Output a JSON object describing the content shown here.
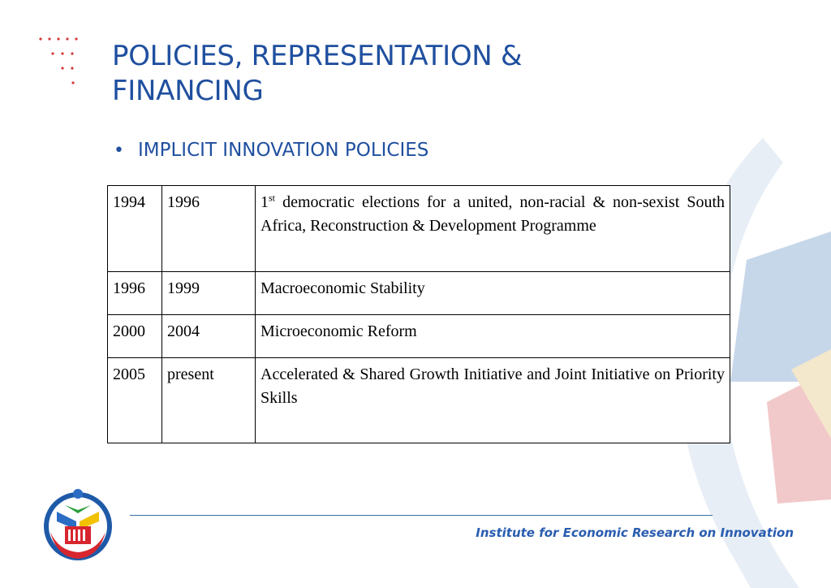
{
  "slide": {
    "title": "POLICIES, REPRESENTATION & FINANCING",
    "bullet": "IMPLICIT INNOVATION POLICIES"
  },
  "table": {
    "rows": [
      {
        "from": "1994",
        "to": "1996",
        "ord_num": "1",
        "ord_suffix": "st",
        "description": "democratic elections for a united, non-racial & non-sexist South Africa, Reconstruction & Development Programme"
      },
      {
        "from": "1996",
        "to": "1999",
        "description": "Macroeconomic Stability"
      },
      {
        "from": "2000",
        "to": "2004",
        "description": "Microeconomic Reform"
      },
      {
        "from": "2005",
        "to": "present",
        "description": "Accelerated & Shared Growth Initiative and Joint Initiative on Priority Skills"
      }
    ]
  },
  "footer": {
    "institute": "Institute for Economic Research on Innovation"
  },
  "colors": {
    "title_blue": "#1f4f9f",
    "footer_blue": "#2a5db0",
    "dot_red": "#d23a3a"
  },
  "icons": {
    "logo": "institute-logo-icon",
    "corner": "red-dots-pattern-icon"
  }
}
